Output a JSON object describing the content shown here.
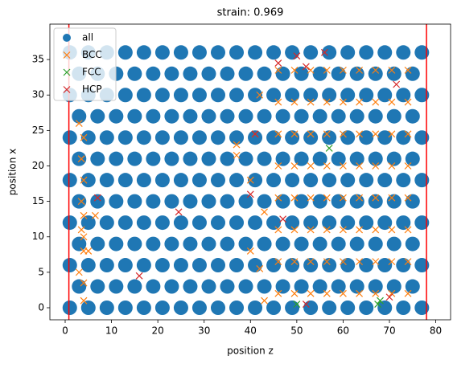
{
  "chart_data": {
    "type": "scatter",
    "title": "strain: 0.969",
    "x_label": "position z",
    "y_label": "position x",
    "xlim": [
      -3.3,
      83.2
    ],
    "ylim": [
      -1.7,
      40
    ],
    "xticks": [
      0,
      10,
      20,
      30,
      40,
      50,
      60,
      70,
      80
    ],
    "yticks": [
      0,
      5,
      10,
      15,
      20,
      25,
      30,
      35
    ],
    "legend": "upper left",
    "vlines": [
      0.8,
      78
    ],
    "vline_color": "#ff0000",
    "series": [
      {
        "name": "all",
        "color": "#1f77b4",
        "marker": "o",
        "x": [
          1,
          5,
          9,
          13,
          17,
          21,
          25,
          29,
          33,
          37,
          41,
          45,
          49,
          53,
          57,
          61,
          65,
          69,
          73,
          77,
          3,
          7,
          11,
          15,
          19,
          23,
          27,
          31,
          35,
          39,
          43,
          47,
          51,
          55,
          59,
          63,
          67,
          71,
          75,
          1,
          5,
          9,
          13,
          17,
          21,
          25,
          29,
          33,
          37,
          41,
          45,
          49,
          53,
          57,
          61,
          65,
          69,
          73,
          77,
          3,
          7,
          11,
          15,
          19,
          23,
          27,
          31,
          35,
          39,
          43,
          47,
          51,
          55,
          59,
          63,
          67,
          71,
          75,
          1,
          5,
          9,
          13,
          17,
          21,
          25,
          29,
          33,
          37,
          41,
          45,
          49,
          53,
          57,
          61,
          65,
          69,
          73,
          77,
          3,
          7,
          11,
          15,
          19,
          23,
          27,
          31,
          35,
          39,
          43,
          47,
          51,
          55,
          59,
          63,
          67,
          71,
          75,
          1,
          5,
          9,
          13,
          17,
          21,
          25,
          29,
          33,
          37,
          41,
          45,
          49,
          53,
          57,
          61,
          65,
          69,
          73,
          77,
          3,
          7,
          11,
          15,
          19,
          23,
          27,
          31,
          35,
          39,
          43,
          47,
          51,
          55,
          59,
          63,
          67,
          71,
          75,
          1,
          5,
          9,
          13,
          17,
          21,
          25,
          29,
          33,
          37,
          41,
          45,
          49,
          53,
          57,
          61,
          65,
          69,
          73,
          77,
          3,
          7,
          11,
          15,
          19,
          23,
          27,
          31,
          35,
          39,
          43,
          47,
          51,
          55,
          59,
          63,
          67,
          71,
          75,
          1,
          5,
          9,
          13,
          17,
          21,
          25,
          29,
          33,
          37,
          41,
          45,
          49,
          53,
          57,
          61,
          65,
          69,
          73,
          77,
          3,
          7,
          11,
          15,
          19,
          23,
          27,
          31,
          35,
          39,
          43,
          47,
          51,
          55,
          59,
          63,
          67,
          71,
          75,
          1,
          5,
          9,
          13,
          17,
          21,
          25,
          29,
          33,
          37,
          41,
          45,
          49,
          53,
          57,
          61,
          65,
          69,
          73,
          77
        ],
        "values": [
          0,
          0,
          0,
          0,
          0,
          0,
          0,
          0,
          0,
          0,
          0,
          0,
          0,
          0,
          0,
          0,
          0,
          0,
          0,
          0,
          3,
          3,
          3,
          3,
          3,
          3,
          3,
          3,
          3,
          3,
          3,
          3,
          3,
          3,
          3,
          3,
          3,
          3,
          3,
          6,
          6,
          6,
          6,
          6,
          6,
          6,
          6,
          6,
          6,
          6,
          6,
          6,
          6,
          6,
          6,
          6,
          6,
          6,
          6,
          9,
          9,
          9,
          9,
          9,
          9,
          9,
          9,
          9,
          9,
          9,
          9,
          9,
          9,
          9,
          9,
          9,
          9,
          9,
          12,
          12,
          12,
          12,
          12,
          12,
          12,
          12,
          12,
          12,
          12,
          12,
          12,
          12,
          12,
          12,
          12,
          12,
          12,
          12,
          15,
          15,
          15,
          15,
          15,
          15,
          15,
          15,
          15,
          15,
          15,
          15,
          15,
          15,
          15,
          15,
          15,
          15,
          15,
          18,
          18,
          18,
          18,
          18,
          18,
          18,
          18,
          18,
          18,
          18,
          18,
          18,
          18,
          18,
          18,
          18,
          18,
          18,
          18,
          21,
          21,
          21,
          21,
          21,
          21,
          21,
          21,
          21,
          21,
          21,
          21,
          21,
          21,
          21,
          21,
          21,
          21,
          21,
          24,
          24,
          24,
          24,
          24,
          24,
          24,
          24,
          24,
          24,
          24,
          24,
          24,
          24,
          24,
          24,
          24,
          24,
          24,
          24,
          27,
          27,
          27,
          27,
          27,
          27,
          27,
          27,
          27,
          27,
          27,
          27,
          27,
          27,
          27,
          27,
          27,
          27,
          27,
          30,
          30,
          30,
          30,
          30,
          30,
          30,
          30,
          30,
          30,
          30,
          30,
          30,
          30,
          30,
          30,
          30,
          30,
          30,
          30,
          33,
          33,
          33,
          33,
          33,
          33,
          33,
          33,
          33,
          33,
          33,
          33,
          33,
          33,
          33,
          33,
          33,
          33,
          33,
          36,
          36,
          36,
          36,
          36,
          36,
          36,
          36,
          36,
          36,
          36,
          36,
          36,
          36,
          36,
          36,
          36,
          36,
          36,
          36
        ]
      },
      {
        "name": "BCC",
        "color": "#ff7f0e",
        "marker": "x",
        "x": [
          4,
          4,
          3,
          4,
          4,
          3.5,
          4,
          3.5,
          4,
          3.5,
          4,
          3,
          6.5,
          5,
          37,
          37,
          40,
          41,
          40,
          42,
          43,
          43,
          42,
          46,
          49.5,
          53,
          56.5,
          60,
          63.5,
          67,
          70.5,
          74,
          46,
          49.5,
          53,
          56.5,
          60,
          63.5,
          67,
          70.5,
          74,
          46,
          49.5,
          53,
          56.5,
          60,
          63.5,
          67,
          70.5,
          74,
          46,
          49.5,
          53,
          56.5,
          60,
          63.5,
          67,
          70.5,
          74,
          46,
          49.5,
          53,
          56.5,
          60,
          63.5,
          67,
          70.5,
          74,
          46,
          49.5,
          53,
          56.5,
          60,
          63.5,
          67,
          70.5,
          74,
          46,
          49.5,
          53,
          56.5,
          60,
          63.5,
          67,
          70.5,
          74,
          46,
          49.5,
          53,
          56.5,
          60,
          63.5,
          67,
          70.5,
          74
        ],
        "values": [
          1,
          3.5,
          5,
          8,
          10,
          11,
          13,
          15,
          18,
          21,
          24,
          26,
          13,
          8,
          23,
          21.5,
          8,
          24.5,
          18,
          5.5,
          1,
          13.5,
          30,
          2,
          2,
          2,
          2,
          2,
          2,
          2,
          2,
          2,
          6.5,
          6.5,
          6.5,
          6.5,
          6.5,
          6.5,
          6.5,
          6.5,
          6.5,
          11,
          11,
          11,
          11,
          11,
          11,
          11,
          11,
          11,
          15.5,
          15.5,
          15.5,
          15.5,
          15.5,
          15.5,
          15.5,
          15.5,
          15.5,
          20,
          20,
          20,
          20,
          20,
          20,
          20,
          20,
          20,
          24.5,
          24.5,
          24.5,
          24.5,
          24.5,
          24.5,
          24.5,
          24.5,
          24.5,
          29,
          29,
          29,
          29,
          29,
          29,
          29,
          29,
          29,
          33.5,
          33.5,
          33.5,
          33.5,
          33.5,
          33.5,
          33.5,
          33.5,
          33.5
        ]
      },
      {
        "name": "FCC",
        "color": "#2ca02c",
        "marker": "x",
        "x": [
          57,
          50,
          67.5,
          68
        ],
        "values": [
          22.5,
          0.5,
          0.5,
          1
        ]
      },
      {
        "name": "HCP",
        "color": "#d62728",
        "marker": "x",
        "x": [
          16,
          24.5,
          7,
          40,
          41,
          47,
          46,
          50,
          52,
          56,
          71.5,
          52,
          70
        ],
        "values": [
          4.5,
          13.5,
          15.5,
          16,
          24.5,
          12.5,
          34.5,
          35.5,
          34,
          36,
          31.5,
          0.5,
          1.5
        ]
      }
    ]
  }
}
